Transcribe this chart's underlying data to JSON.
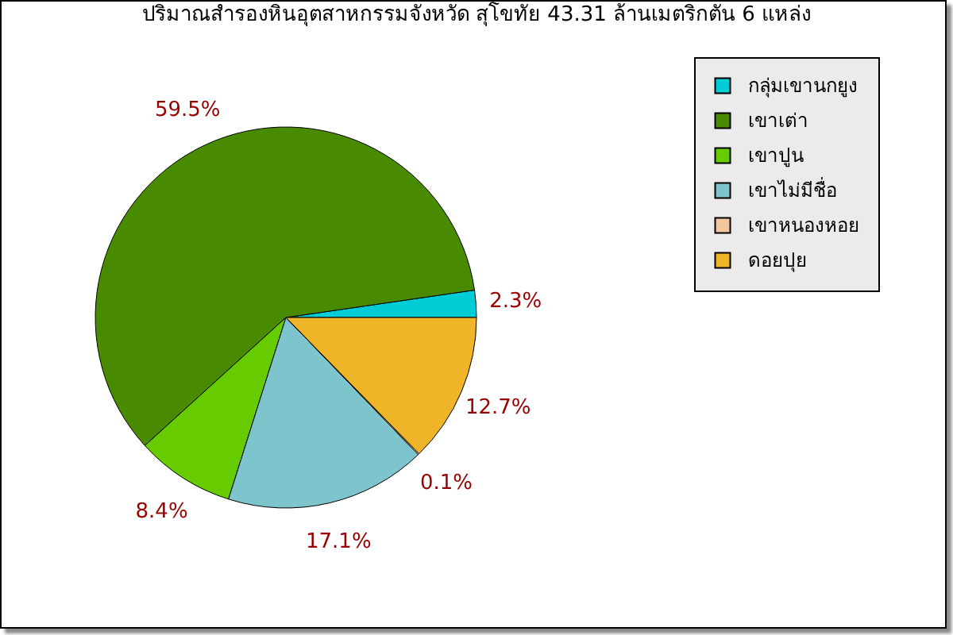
{
  "chart_data": {
    "type": "pie",
    "title": "ปริมาณสำรองหินอุตสาหกรรมจังหวัด สุโขทัย 43.31 ล้านเมตริกตัน 6 แหล่ง",
    "categories": [
      "กลุ่มเขานกยูง",
      "เขาเต่า",
      "เขาปูน",
      "เขาไม่มีชื่อ",
      "เขาหนองหอย",
      "ดอยปุย"
    ],
    "values": [
      2.3,
      59.5,
      8.4,
      17.1,
      0.1,
      12.7
    ],
    "value_labels": [
      "2.3%",
      "59.5%",
      "8.4%",
      "17.1%",
      "0.1%",
      "12.7%"
    ],
    "colors": [
      "#00ccd6",
      "#488a00",
      "#66cc00",
      "#7ec4cc",
      "#f2c79e",
      "#f0b428"
    ],
    "legend": "top right"
  }
}
